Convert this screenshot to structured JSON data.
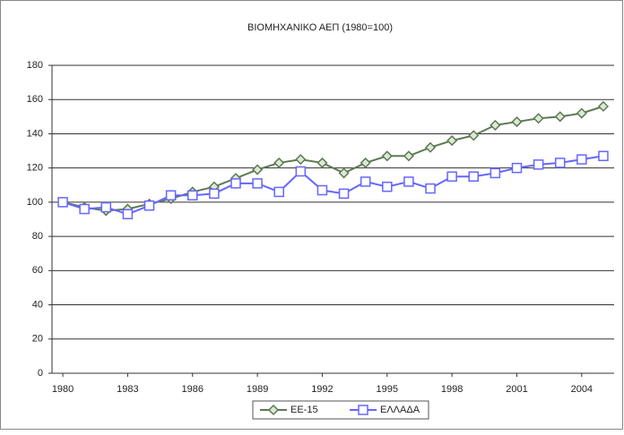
{
  "chart_data": {
    "type": "line",
    "title": "ΒΙΟΜΗΧΑΝΙΚΟ ΑΕΠ (1980=100)",
    "x": [
      1980,
      1981,
      1982,
      1983,
      1984,
      1985,
      1986,
      1987,
      1988,
      1989,
      1990,
      1991,
      1992,
      1993,
      1994,
      1995,
      1996,
      1997,
      1998,
      1999,
      2000,
      2001,
      2002,
      2003,
      2004,
      2005
    ],
    "series": [
      {
        "name": "ΕΕ-15",
        "color": "#5c7a52",
        "marker": "diamond",
        "values": [
          100,
          97,
          95,
          96,
          99,
          102,
          106,
          109,
          114,
          119,
          123,
          125,
          123,
          117,
          123,
          127,
          127,
          132,
          136,
          139,
          145,
          147,
          149,
          150,
          152,
          156
        ]
      },
      {
        "name": "ΕΛΛΑΔΑ",
        "color": "#6666ff",
        "marker": "square",
        "values": [
          100,
          96,
          97,
          93,
          98,
          104,
          104,
          105,
          111,
          111,
          106,
          118,
          107,
          105,
          112,
          109,
          112,
          108,
          115,
          115,
          117,
          120,
          122,
          123,
          125,
          127
        ]
      }
    ],
    "xlim": [
      1979.5,
      2005.5
    ],
    "xticks": [
      1980,
      1983,
      1986,
      1989,
      1992,
      1995,
      1998,
      2001,
      2004
    ],
    "ylim": [
      0,
      180
    ],
    "yticks": [
      0,
      20,
      40,
      60,
      80,
      100,
      120,
      140,
      160,
      180
    ],
    "grid": true,
    "legend": "bottom"
  }
}
